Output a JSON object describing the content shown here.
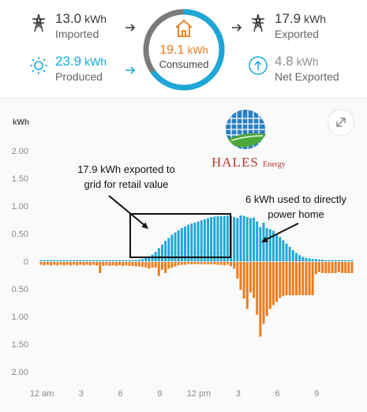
{
  "summary": {
    "imported": {
      "value": "13.0",
      "unit": "kWh",
      "label": "Imported",
      "icon": "power-tower-icon"
    },
    "produced": {
      "value": "23.9",
      "unit": "kWh",
      "label": "Produced",
      "icon": "sun-icon"
    },
    "consumed": {
      "value": "19.1",
      "unit": "kWh",
      "label": "Consumed",
      "icon": "house-icon"
    },
    "exported": {
      "value": "17.9",
      "unit": "kWh",
      "label": "Exported",
      "icon": "power-tower-icon"
    },
    "net_exported": {
      "value": "4.8",
      "unit": "kWh",
      "label": "Net Exported",
      "icon": "up-arrow-circle-icon"
    }
  },
  "colors": {
    "solar": "#1ea7d8",
    "grid": "#f07a1a",
    "ring_grey": "#7a7a7a",
    "dark_text": "#3a3a3a",
    "muted_text": "#8f8f8f"
  },
  "chart": {
    "unit_label": "kWh",
    "expand_icon": "expand-icon"
  },
  "logo": {
    "brand": "HALES",
    "sub": "Energy"
  },
  "annotations": {
    "exported_note_line1": "17.9 kWh exported to",
    "exported_note_line2": "grid for retail value",
    "used_note_line1": "6 kWh used to directly",
    "used_note_line2": "power home"
  },
  "chart_data": {
    "type": "bar",
    "ylabel": "kWh",
    "ylim": [
      -2.0,
      2.0
    ],
    "y_ticks": [
      "2.00",
      "1.50",
      "1.00",
      "0.50",
      "0",
      "0.50",
      "1.00",
      "1.50",
      "2.00"
    ],
    "x_ticks": [
      "12 am",
      "3",
      "6",
      "9",
      "12 pm",
      "3",
      "6",
      "9"
    ],
    "hours_per_bar": 0.25,
    "series": [
      {
        "name": "Produced",
        "color": "#1ea7d8",
        "values": [
          0.02,
          0.02,
          0.02,
          0.02,
          0.02,
          0.02,
          0.02,
          0.02,
          0.02,
          0.02,
          0.02,
          0.02,
          0.02,
          0.02,
          0.02,
          0.02,
          0.02,
          0.02,
          0.02,
          0.02,
          0.02,
          0.02,
          0.02,
          0.02,
          0.02,
          0.02,
          0.02,
          0.02,
          0.02,
          0.02,
          0.03,
          0.04,
          0.06,
          0.09,
          0.12,
          0.17,
          0.24,
          0.3,
          0.37,
          0.42,
          0.48,
          0.52,
          0.56,
          0.6,
          0.63,
          0.66,
          0.68,
          0.7,
          0.72,
          0.74,
          0.76,
          0.78,
          0.8,
          0.81,
          0.82,
          0.82,
          0.82,
          0.83,
          0.82,
          0.8,
          0.78,
          0.83,
          0.82,
          0.8,
          0.78,
          0.79,
          0.72,
          0.62,
          0.7,
          0.6,
          0.58,
          0.55,
          0.48,
          0.44,
          0.38,
          0.32,
          0.26,
          0.2,
          0.15,
          0.11,
          0.08,
          0.06,
          0.05,
          0.04,
          0.04,
          0.03,
          0.03,
          0.02,
          0.02,
          0.02,
          0.02,
          0.02,
          0.02,
          0.02,
          0.02,
          0.02
        ]
      },
      {
        "name": "Imported",
        "color": "#f07a1a",
        "values": [
          0.05,
          0.06,
          0.05,
          0.06,
          0.05,
          0.06,
          0.05,
          0.06,
          0.05,
          0.06,
          0.05,
          0.06,
          0.05,
          0.06,
          0.05,
          0.06,
          0.05,
          0.06,
          0.2,
          0.07,
          0.06,
          0.07,
          0.06,
          0.07,
          0.06,
          0.07,
          0.06,
          0.07,
          0.07,
          0.08,
          0.08,
          0.09,
          0.1,
          0.12,
          0.1,
          0.1,
          0.25,
          0.14,
          0.2,
          0.12,
          0.1,
          0.08,
          0.06,
          0.05,
          0.05,
          0.04,
          0.04,
          0.04,
          0.04,
          0.04,
          0.04,
          0.04,
          0.04,
          0.04,
          0.05,
          0.05,
          0.06,
          0.05,
          0.08,
          0.12,
          0.3,
          0.5,
          0.66,
          0.85,
          0.55,
          0.65,
          0.95,
          1.35,
          1.12,
          0.98,
          0.85,
          0.78,
          0.72,
          0.65,
          0.62,
          0.6,
          0.6,
          0.6,
          0.6,
          0.6,
          0.6,
          0.6,
          0.6,
          0.6,
          0.22,
          0.18,
          0.2,
          0.2,
          0.2,
          0.2,
          0.2,
          0.18,
          0.2,
          0.2,
          0.2,
          0.2
        ]
      }
    ]
  }
}
